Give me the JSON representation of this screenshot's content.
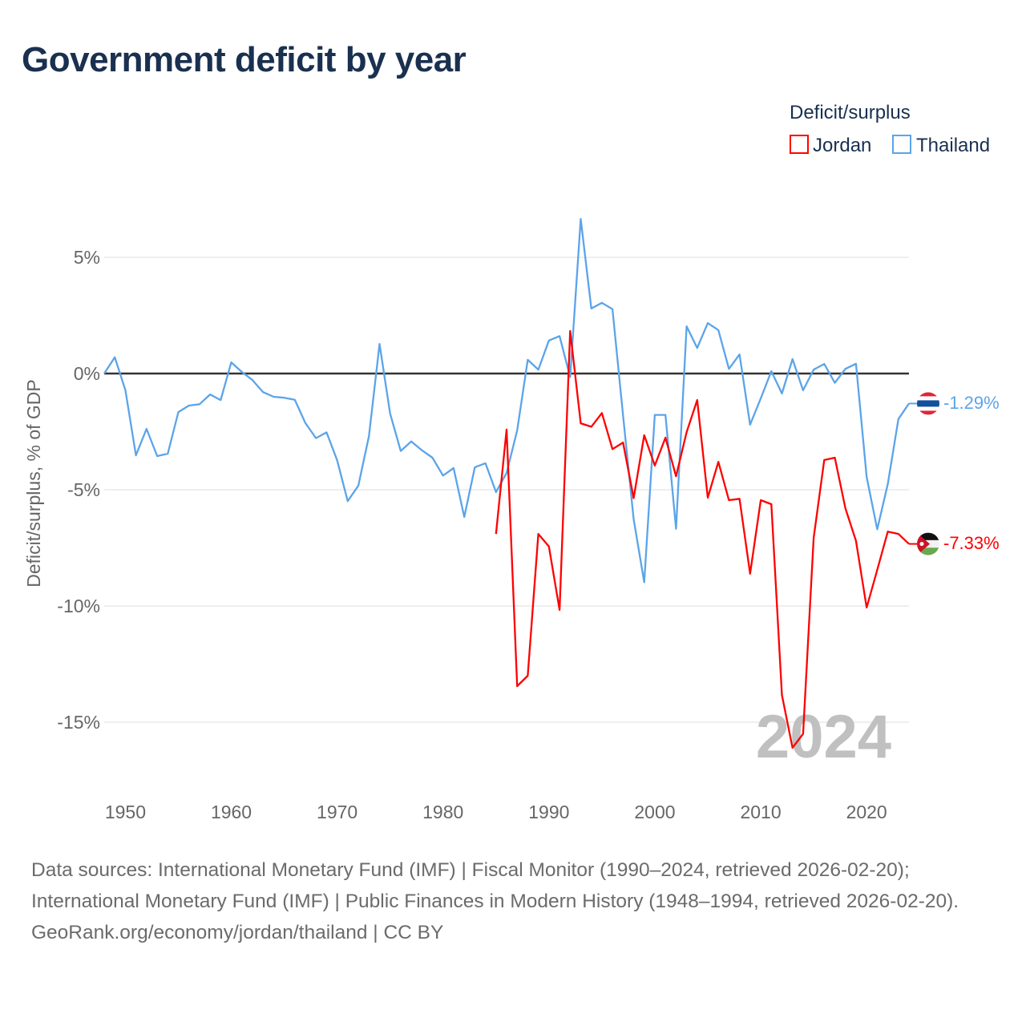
{
  "title": "Government deficit by year",
  "footer": {
    "sources": "Data sources: International Monetary Fund (IMF) | Fiscal Monitor (1990–2024, retrieved 2026-02-20); International Monetary Fund (IMF) | Public Finances in Modern History (1948–1994, retrieved 2026-02-20).",
    "credit": "GeoRank.org/economy/jordan/thailand | CC BY"
  },
  "chart_data": {
    "type": "line",
    "title": "Government deficit by year",
    "xlabel": "",
    "ylabel": "Deficit/surplus, % of GDP",
    "xlim": [
      1948,
      2024
    ],
    "ylim": [
      -17,
      7
    ],
    "xticks": [
      1950,
      1960,
      1970,
      1980,
      1990,
      2000,
      2010,
      2020
    ],
    "xtick_labels": [
      "1950",
      "1960",
      "1970",
      "1980",
      "1990",
      "2000",
      "2010",
      "2020"
    ],
    "yticks": [
      5,
      0,
      -5,
      -10,
      -15
    ],
    "ytick_labels": [
      "5%",
      "0%",
      "-5%",
      "-10%",
      "-15%"
    ],
    "grid": true,
    "legend_title": "Deficit/surplus",
    "legend_position": "top-right",
    "year_watermark": "2024",
    "series": [
      {
        "name": "Jordan",
        "color": "#ff0000",
        "end_label": "-7.33%",
        "start_year": 1985,
        "values": [
          -6.9,
          -2.41,
          -13.45,
          -13.0,
          -6.9,
          -7.44,
          -10.17,
          1.83,
          -2.14,
          -2.29,
          -1.7,
          -3.25,
          -2.97,
          -5.36,
          -2.65,
          -3.96,
          -2.76,
          -4.42,
          -2.52,
          -1.14,
          -5.34,
          -3.8,
          -5.45,
          -5.39,
          -8.61,
          -5.45,
          -5.62,
          -13.83,
          -16.1,
          -15.5,
          -7.07,
          -3.72,
          -3.62,
          -5.8,
          -7.2,
          -10.07,
          -8.45,
          -6.8,
          -6.9,
          -7.33
        ]
      },
      {
        "name": "Thailand",
        "color": "#5ba4ea",
        "end_label": "-1.29%",
        "start_year": 1948,
        "values": [
          0.0,
          0.7,
          -0.71,
          -3.52,
          -2.38,
          -3.55,
          -3.45,
          -1.66,
          -1.38,
          -1.32,
          -0.9,
          -1.14,
          0.48,
          0.07,
          -0.28,
          -0.8,
          -1.0,
          -1.04,
          -1.13,
          -2.13,
          -2.78,
          -2.53,
          -3.73,
          -5.49,
          -4.82,
          -2.69,
          1.27,
          -1.72,
          -3.33,
          -2.92,
          -3.3,
          -3.62,
          -4.39,
          -4.07,
          -6.17,
          -4.03,
          -3.86,
          -5.1,
          -4.28,
          -2.45,
          0.59,
          0.17,
          1.42,
          1.61,
          -0.15,
          6.65,
          2.8,
          3.04,
          2.77,
          -1.8,
          -6.26,
          -8.98,
          -1.78,
          -1.78,
          -6.68,
          2.03,
          1.1,
          2.17,
          1.87,
          0.2,
          0.82,
          -2.2,
          -1.07,
          0.1,
          -0.86,
          0.62,
          -0.72,
          0.17,
          0.41,
          -0.4,
          0.2,
          0.42,
          -4.45,
          -6.7,
          -4.75,
          -1.96,
          -1.29
        ]
      }
    ]
  }
}
